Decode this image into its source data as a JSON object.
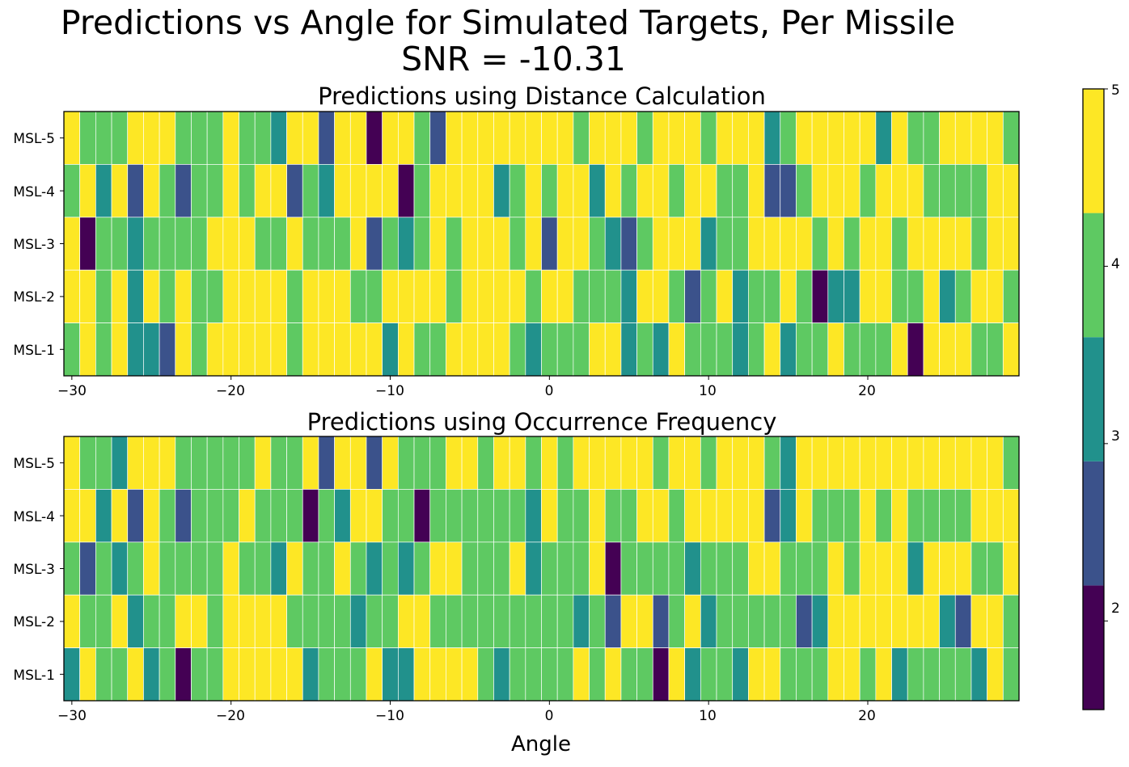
{
  "figure": {
    "title_line1": "Predictions vs Angle for Simulated Targets, Per Missile",
    "title_line2": "SNR = -10.31",
    "xlabel": "Angle"
  },
  "colorbar": {
    "ticks": [
      "2",
      "3",
      "4",
      "5"
    ],
    "colors": [
      "#440154",
      "#3b528b",
      "#21918c",
      "#5ec962",
      "#fde725"
    ]
  },
  "chart_data": [
    {
      "type": "heatmap",
      "title": "Predictions using Distance Calculation",
      "x_ticks": [
        "−30",
        "−20",
        "−10",
        "0",
        "10",
        "20"
      ],
      "x_start": -30,
      "x_step": 1,
      "rows": [
        "MSL-5",
        "MSL-4",
        "MSL-3",
        "MSL-2",
        "MSL-1"
      ],
      "values": [
        [
          5,
          4,
          4,
          4,
          5,
          5,
          5,
          4,
          4,
          4,
          5,
          4,
          4,
          3,
          5,
          5,
          2,
          5,
          5,
          1,
          5,
          5,
          4,
          2,
          5,
          5,
          5,
          5,
          5,
          5,
          5,
          5,
          4,
          5,
          5,
          5,
          4,
          5,
          5,
          5,
          4,
          5,
          5,
          5,
          3,
          4,
          5,
          5,
          5,
          5,
          5,
          3,
          5,
          4,
          4,
          5,
          5,
          5,
          5,
          4
        ],
        [
          4,
          5,
          3,
          5,
          2,
          5,
          4,
          2,
          4,
          4,
          5,
          4,
          5,
          5,
          2,
          4,
          3,
          5,
          5,
          5,
          5,
          1,
          4,
          5,
          5,
          5,
          5,
          3,
          4,
          5,
          4,
          5,
          5,
          3,
          5,
          4,
          5,
          5,
          4,
          5,
          5,
          4,
          4,
          5,
          2,
          2,
          4,
          5,
          5,
          5,
          4,
          5,
          5,
          5,
          4,
          4,
          4,
          4,
          5,
          5
        ],
        [
          5,
          1,
          4,
          4,
          3,
          4,
          4,
          4,
          4,
          5,
          5,
          5,
          4,
          4,
          5,
          4,
          4,
          4,
          5,
          2,
          4,
          3,
          4,
          5,
          4,
          5,
          5,
          5,
          4,
          5,
          2,
          5,
          5,
          4,
          3,
          2,
          4,
          5,
          5,
          5,
          3,
          4,
          4,
          5,
          5,
          5,
          5,
          4,
          5,
          4,
          5,
          5,
          4,
          5,
          5,
          5,
          5,
          4,
          5,
          5
        ],
        [
          5,
          5,
          4,
          5,
          3,
          5,
          4,
          5,
          4,
          4,
          5,
          5,
          5,
          5,
          4,
          5,
          5,
          5,
          4,
          4,
          5,
          5,
          5,
          5,
          4,
          5,
          5,
          5,
          5,
          4,
          5,
          5,
          4,
          4,
          4,
          3,
          5,
          5,
          4,
          2,
          4,
          5,
          3,
          4,
          4,
          5,
          4,
          1,
          3,
          3,
          5,
          5,
          4,
          4,
          5,
          3,
          4,
          5,
          5,
          4
        ],
        [
          4,
          5,
          4,
          5,
          3,
          3,
          2,
          5,
          4,
          5,
          5,
          5,
          5,
          5,
          4,
          5,
          5,
          5,
          5,
          5,
          3,
          5,
          4,
          4,
          5,
          5,
          5,
          5,
          4,
          3,
          4,
          4,
          4,
          5,
          5,
          3,
          4,
          3,
          5,
          4,
          4,
          4,
          3,
          4,
          5,
          3,
          4,
          4,
          5,
          4,
          4,
          4,
          5,
          1,
          5,
          5,
          5,
          4,
          4,
          5
        ]
      ]
    },
    {
      "type": "heatmap",
      "title": "Predictions using Occurrence Frequency",
      "x_ticks": [
        "−30",
        "−20",
        "−10",
        "0",
        "10",
        "20"
      ],
      "x_start": -30,
      "x_step": 1,
      "rows": [
        "MSL-5",
        "MSL-4",
        "MSL-3",
        "MSL-2",
        "MSL-1"
      ],
      "values": [
        [
          5,
          4,
          4,
          3,
          5,
          5,
          5,
          4,
          4,
          4,
          4,
          4,
          5,
          4,
          4,
          5,
          2,
          5,
          5,
          2,
          5,
          4,
          4,
          4,
          5,
          5,
          4,
          5,
          5,
          4,
          5,
          4,
          5,
          5,
          5,
          5,
          5,
          4,
          5,
          5,
          4,
          5,
          5,
          5,
          4,
          3,
          5,
          5,
          5,
          5,
          5,
          5,
          5,
          5,
          5,
          5,
          5,
          5,
          5,
          4
        ],
        [
          5,
          5,
          3,
          5,
          2,
          5,
          4,
          2,
          4,
          4,
          4,
          5,
          4,
          4,
          4,
          1,
          4,
          3,
          5,
          5,
          4,
          4,
          1,
          4,
          4,
          4,
          4,
          4,
          4,
          3,
          5,
          4,
          4,
          5,
          4,
          4,
          5,
          5,
          4,
          5,
          5,
          5,
          5,
          5,
          2,
          3,
          5,
          4,
          4,
          4,
          5,
          4,
          5,
          4,
          4,
          4,
          4,
          5,
          5,
          5
        ],
        [
          4,
          2,
          4,
          3,
          4,
          5,
          4,
          4,
          4,
          4,
          5,
          4,
          4,
          3,
          5,
          4,
          4,
          5,
          4,
          3,
          4,
          3,
          4,
          5,
          5,
          4,
          4,
          4,
          5,
          3,
          4,
          4,
          4,
          5,
          1,
          4,
          4,
          4,
          4,
          3,
          4,
          4,
          4,
          5,
          5,
          4,
          4,
          4,
          5,
          4,
          5,
          5,
          5,
          3,
          5,
          5,
          5,
          4,
          4,
          5
        ],
        [
          5,
          4,
          4,
          5,
          3,
          4,
          4,
          5,
          5,
          4,
          5,
          5,
          5,
          5,
          4,
          4,
          4,
          4,
          3,
          4,
          4,
          5,
          5,
          4,
          4,
          4,
          4,
          4,
          4,
          4,
          4,
          4,
          3,
          4,
          2,
          5,
          5,
          2,
          4,
          5,
          3,
          4,
          4,
          4,
          4,
          4,
          2,
          3,
          5,
          5,
          5,
          5,
          5,
          5,
          5,
          3,
          2,
          5,
          5,
          4
        ],
        [
          3,
          5,
          4,
          4,
          5,
          3,
          4,
          1,
          4,
          4,
          5,
          5,
          5,
          5,
          5,
          3,
          4,
          4,
          4,
          5,
          3,
          3,
          5,
          5,
          5,
          5,
          4,
          3,
          4,
          4,
          4,
          4,
          5,
          4,
          5,
          4,
          4,
          1,
          5,
          3,
          4,
          4,
          3,
          5,
          5,
          4,
          4,
          4,
          5,
          5,
          4,
          5,
          3,
          4,
          4,
          4,
          4,
          3,
          5,
          4
        ]
      ]
    }
  ]
}
